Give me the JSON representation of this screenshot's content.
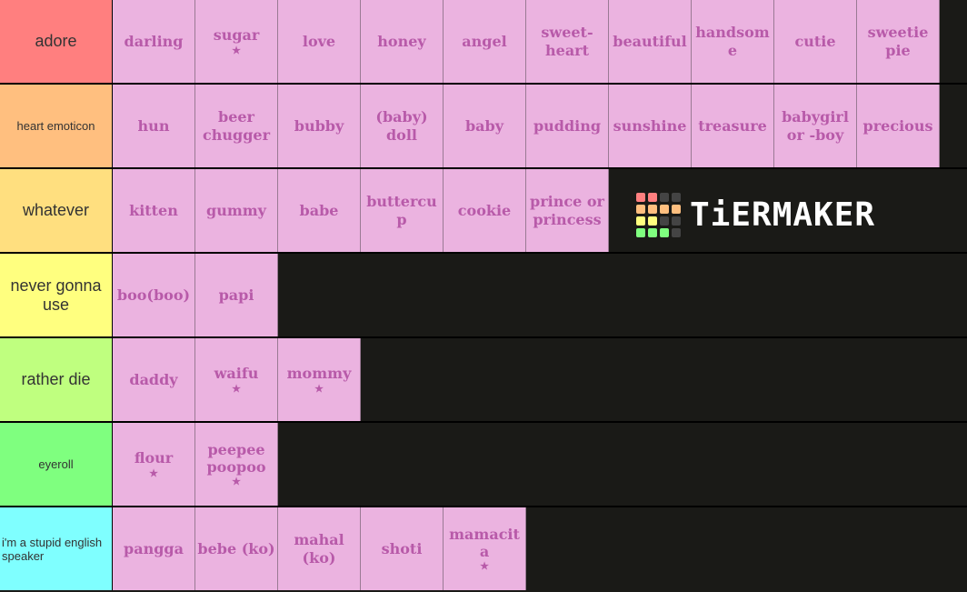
{
  "tiers": [
    {
      "label": "adore",
      "color": "#ff7f7f",
      "font": "18px",
      "items": [
        {
          "text": "darling"
        },
        {
          "text": "sugar",
          "star": "★"
        },
        {
          "text": "love"
        },
        {
          "text": "honey"
        },
        {
          "text": "angel"
        },
        {
          "text": "sweet-heart"
        },
        {
          "text": "beautiful"
        },
        {
          "text": "handsome"
        },
        {
          "text": "cutie"
        },
        {
          "text": "sweetie pie"
        }
      ]
    },
    {
      "label": "heart emoticon",
      "color": "#ffbf7f",
      "font": "13px",
      "items": [
        {
          "text": "hun"
        },
        {
          "text": "beer chugger"
        },
        {
          "text": "bubby"
        },
        {
          "text": "(baby) doll"
        },
        {
          "text": "baby"
        },
        {
          "text": "pudding"
        },
        {
          "text": "sunshine"
        },
        {
          "text": "treasure"
        },
        {
          "text": "babygirl or -boy"
        },
        {
          "text": "precious"
        }
      ]
    },
    {
      "label": "whatever",
      "color": "#ffdf7f",
      "font": "18px",
      "items": [
        {
          "text": "kitten"
        },
        {
          "text": "gummy"
        },
        {
          "text": "babe"
        },
        {
          "text": "buttercup"
        },
        {
          "text": "cookie"
        },
        {
          "text": "prince or princess"
        }
      ]
    },
    {
      "label": "never gonna use",
      "color": "#ffff7f",
      "font": "18px",
      "items": [
        {
          "text": "boo(boo)"
        },
        {
          "text": "papi"
        }
      ]
    },
    {
      "label": "rather die",
      "color": "#bfff7f",
      "font": "18px",
      "items": [
        {
          "text": "daddy"
        },
        {
          "text": "waifu",
          "star": "★"
        },
        {
          "text": "mommy",
          "star": "★"
        }
      ]
    },
    {
      "label": "eyeroll",
      "color": "#7fff7f",
      "font": "13px",
      "items": [
        {
          "text": "flour",
          "star": "★"
        },
        {
          "text": "peepee poopoo",
          "star": "★"
        }
      ]
    },
    {
      "label": "i'm a stupid english speaker",
      "color": "#7fffff",
      "font": "13px",
      "items": [
        {
          "text": "pangga"
        },
        {
          "text": "bebe (ko)"
        },
        {
          "text": "mahal (ko)"
        },
        {
          "text": "shoti"
        },
        {
          "text": "mamacita",
          "star": "★"
        }
      ]
    }
  ],
  "logo": {
    "text": "TiERMAKER",
    "colors": [
      "#ff7f7f",
      "#ff7f7f",
      "#444",
      "#444",
      "#ffbf7f",
      "#ffbf7f",
      "#ffbf7f",
      "#ffbf7f",
      "#ffff7f",
      "#ffff7f",
      "#444",
      "#444",
      "#7fff7f",
      "#7fff7f",
      "#7fff7f",
      "#444"
    ]
  }
}
